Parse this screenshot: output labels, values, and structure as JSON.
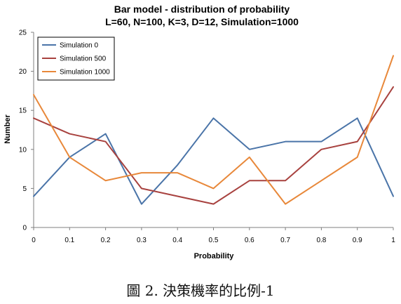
{
  "chart_data": {
    "type": "line",
    "title": "Bar model - distribution of probability",
    "subtitle": "L=60, N=100, K=3, D=12, Simulation=1000",
    "xlabel": "Probability",
    "ylabel": "Number",
    "x": [
      0,
      0.1,
      0.2,
      0.3,
      0.4,
      0.5,
      0.6,
      0.7,
      0.8,
      0.9,
      1
    ],
    "x_tick_labels": [
      "0",
      "0.1",
      "0.2",
      "0.3",
      "0.4",
      "0.5",
      "0.6",
      "0.7",
      "0.8",
      "0.9",
      "1"
    ],
    "xlim": [
      0,
      1
    ],
    "ylim": [
      0,
      25
    ],
    "y_ticks": [
      0,
      5,
      10,
      15,
      20,
      25
    ],
    "grid": false,
    "legend_position": "top-left",
    "series": [
      {
        "name": "Simulation 0",
        "color": "#4a74a8",
        "values": [
          4,
          9,
          12,
          3,
          8,
          14,
          10,
          11,
          11,
          14,
          4
        ]
      },
      {
        "name": "Simulation 500",
        "color": "#a8423f",
        "values": [
          14,
          12,
          11,
          5,
          4,
          3,
          6,
          6,
          10,
          11,
          18
        ]
      },
      {
        "name": "Simulation 1000",
        "color": "#e8883a",
        "values": [
          17,
          9,
          6,
          7,
          7,
          5,
          9,
          3,
          6,
          9,
          22
        ]
      }
    ]
  },
  "caption": "圖 2.  決策機率的比例-1"
}
